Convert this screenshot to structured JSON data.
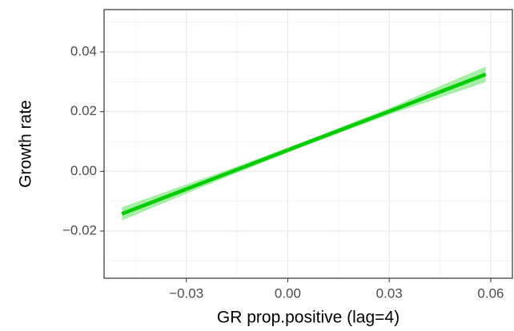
{
  "chart_data": {
    "type": "line",
    "x_label": "GR prop.positive (lag=4)",
    "y_label": "Growth rate",
    "x": [
      -0.049,
      -0.02,
      0.005,
      0.03,
      0.0585
    ],
    "series": [
      {
        "color": "#00cc00",
        "band_color": "#90e890",
        "values": [
          -0.0142,
          -0.0016,
          0.0093,
          0.0201,
          0.0325
        ],
        "lower": [
          -0.0164,
          -0.0028,
          0.0085,
          0.019,
          0.0299
        ],
        "upper": [
          -0.012,
          -0.0004,
          0.0101,
          0.0212,
          0.0351
        ]
      }
    ],
    "xlim": [
      -0.0543,
      0.0664
    ],
    "ylim": [
      -0.0358,
      0.0542
    ],
    "xticks": [
      {
        "value": -0.03,
        "label": "−0.03"
      },
      {
        "value": 0,
        "label": "0.00"
      },
      0.03,
      0.06
    ],
    "yticks": [
      {
        "value": -0.02,
        "label": "−0.02"
      },
      {
        "value": 0,
        "label": "0.00"
      },
      0.02,
      0.04
    ],
    "xminor": [
      -0.045,
      -0.015,
      0.015,
      0.045
    ],
    "yminor": [
      -0.03,
      -0.01,
      0.01,
      0.03,
      0.05
    ],
    "grid": true
  }
}
